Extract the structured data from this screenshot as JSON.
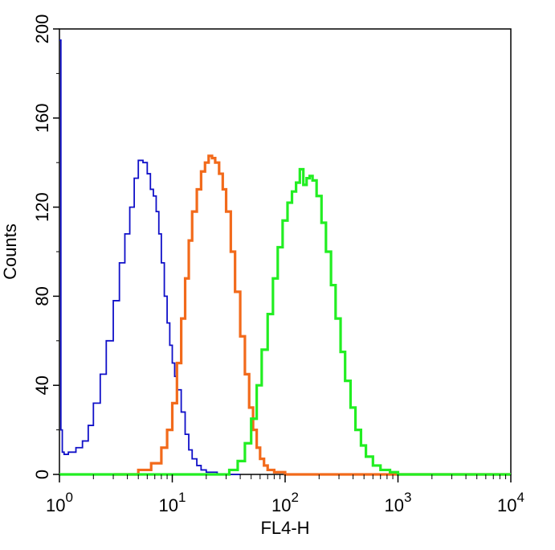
{
  "chart_data": {
    "type": "line",
    "title": "",
    "xlabel": "FL4-H",
    "ylabel": "Counts",
    "xscale": "log",
    "xlim": [
      1,
      10000
    ],
    "ylim": [
      0,
      200
    ],
    "yticks": [
      0,
      40,
      80,
      120,
      160,
      200
    ],
    "xticks": [
      {
        "value": 1,
        "base": "10",
        "exp": "0"
      },
      {
        "value": 10,
        "base": "10",
        "exp": "1"
      },
      {
        "value": 100,
        "base": "10",
        "exp": "2"
      },
      {
        "value": 1000,
        "base": "10",
        "exp": "3"
      },
      {
        "value": 10000,
        "base": "10",
        "exp": "4"
      }
    ],
    "grid": false,
    "legend": "none",
    "series": [
      {
        "color": "#1010c8",
        "x": [
          1,
          1.03,
          1.06,
          1.1,
          1.2,
          1.4,
          1.6,
          1.8,
          2.0,
          2.3,
          2.6,
          3.0,
          3.4,
          3.8,
          4.2,
          4.6,
          5.0,
          5.5,
          6.0,
          6.4,
          6.8,
          7.2,
          7.6,
          8.0,
          8.5,
          9.0,
          9.5,
          10.0,
          10.5,
          11.0,
          12.0,
          13.0,
          14.0,
          15.0,
          16.5,
          18.0,
          20.0,
          25.0,
          30.0,
          40.0
        ],
        "y": [
          195,
          20,
          10,
          9,
          10,
          12,
          15,
          22,
          32,
          45,
          60,
          78,
          95,
          108,
          120,
          133,
          141,
          140,
          135,
          128,
          125,
          118,
          108,
          95,
          80,
          68,
          58,
          50,
          44,
          38,
          28,
          18,
          11,
          7,
          4,
          2,
          1,
          0,
          0,
          0
        ]
      },
      {
        "color": "#f26a1b",
        "x": [
          3.0,
          5.0,
          6.5,
          8.0,
          9.0,
          10.0,
          11.0,
          12.0,
          13.0,
          14.0,
          15.0,
          16.5,
          18.0,
          19.5,
          21.0,
          22.5,
          24.0,
          26.0,
          28.0,
          30.0,
          33.0,
          36.0,
          40.0,
          44.0,
          48.0,
          52.0,
          56.0,
          60.0,
          65.0,
          70.0,
          80.0,
          100.0,
          10000.0
        ],
        "y": [
          0,
          2,
          5,
          12,
          20,
          32,
          50,
          70,
          88,
          105,
          118,
          128,
          136,
          140,
          143,
          142,
          140,
          135,
          128,
          118,
          100,
          82,
          62,
          45,
          30,
          20,
          12,
          7,
          4,
          2,
          1,
          0,
          0
        ]
      },
      {
        "color": "#22ee22",
        "x": [
          1,
          25.0,
          32.0,
          38.0,
          44.0,
          50.0,
          56.0,
          62.0,
          70.0,
          78.0,
          86.0,
          95.0,
          105.0,
          115.0,
          125.0,
          135.0,
          145.0,
          155.0,
          165.0,
          175.0,
          190.0,
          210.0,
          230.0,
          255.0,
          280.0,
          310.0,
          340.0,
          380.0,
          420.0,
          470.0,
          520.0,
          600.0,
          700.0,
          850.0,
          1000.0,
          10000.0
        ],
        "y": [
          0,
          0,
          2,
          6,
          14,
          25,
          40,
          56,
          72,
          88,
          102,
          114,
          122,
          127,
          131,
          137,
          130,
          133,
          134,
          132,
          125,
          113,
          100,
          85,
          70,
          55,
          42,
          30,
          20,
          13,
          8,
          4,
          2,
          1,
          0,
          0
        ]
      }
    ]
  }
}
